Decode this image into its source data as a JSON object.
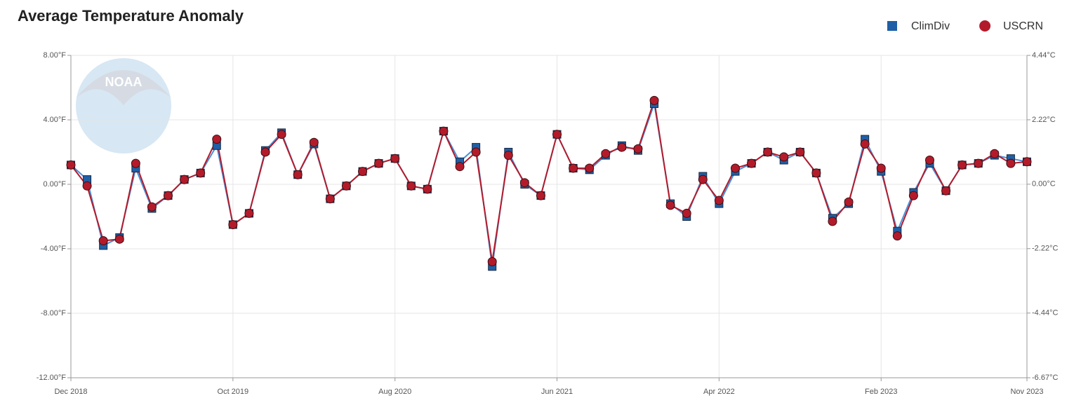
{
  "chart_data": {
    "type": "line",
    "title": "Average Temperature Anomaly",
    "watermark": "NOAA",
    "categories": [
      "Dec 2018",
      null,
      null,
      null,
      null,
      null,
      null,
      null,
      null,
      null,
      "Oct 2019",
      null,
      null,
      null,
      null,
      null,
      null,
      null,
      null,
      null,
      "Aug 2020",
      null,
      null,
      null,
      null,
      null,
      null,
      null,
      null,
      null,
      "Jun 2021",
      null,
      null,
      null,
      null,
      null,
      null,
      null,
      null,
      null,
      "Apr 2022",
      null,
      null,
      null,
      null,
      null,
      null,
      null,
      null,
      null,
      "Feb 2023",
      null,
      null,
      null,
      null,
      null,
      null,
      null,
      null,
      "Nov 2023"
    ],
    "series": [
      {
        "name": "ClimDiv",
        "color": "#1f5fa6",
        "line_color": "#4a90d9",
        "marker": "square",
        "values": [
          1.2,
          0.3,
          -3.8,
          -3.3,
          1.0,
          -1.5,
          -0.7,
          0.3,
          0.7,
          2.4,
          -2.5,
          -1.8,
          2.1,
          3.2,
          0.6,
          2.5,
          -0.9,
          -0.1,
          0.8,
          1.3,
          1.6,
          -0.1,
          -0.3,
          3.3,
          1.4,
          2.3,
          -5.1,
          2.0,
          0.0,
          -0.7,
          3.1,
          1.0,
          0.9,
          1.8,
          2.4,
          2.1,
          5.0,
          -1.2,
          -2.0,
          0.5,
          -1.2,
          0.8,
          1.3,
          2.0,
          1.5,
          2.0,
          0.7,
          -2.1,
          -1.2,
          2.8,
          0.8,
          -2.9,
          -0.5,
          1.3,
          -0.4,
          1.2,
          1.3,
          1.8,
          1.6,
          1.4
        ]
      },
      {
        "name": "USCRN",
        "color": "#b31b2b",
        "line_color": "#b31b2b",
        "marker": "circle",
        "values": [
          1.2,
          -0.1,
          -3.5,
          -3.4,
          1.3,
          -1.4,
          -0.7,
          0.3,
          0.7,
          2.8,
          -2.5,
          -1.8,
          2.0,
          3.1,
          0.6,
          2.6,
          -0.9,
          -0.1,
          0.8,
          1.3,
          1.6,
          -0.1,
          -0.3,
          3.3,
          1.1,
          2.0,
          -4.8,
          1.8,
          0.1,
          -0.7,
          3.1,
          1.0,
          1.0,
          1.9,
          2.3,
          2.2,
          5.2,
          -1.3,
          -1.8,
          0.3,
          -1.0,
          1.0,
          1.3,
          2.0,
          1.7,
          2.0,
          0.7,
          -2.3,
          -1.1,
          2.5,
          1.0,
          -3.2,
          -0.7,
          1.5,
          -0.4,
          1.2,
          1.3,
          1.9,
          1.3,
          1.4
        ]
      }
    ],
    "ylim": [
      -12,
      8
    ],
    "yticks": [
      {
        "value": -12,
        "label": "-12.00°F"
      },
      {
        "value": -8,
        "label": "-8.00°F"
      },
      {
        "value": -4,
        "label": "-4.00°F"
      },
      {
        "value": 0,
        "label": "0.00°F"
      },
      {
        "value": 4,
        "label": "4.00°F"
      },
      {
        "value": 8,
        "label": "8.00°F"
      }
    ],
    "y2lim": [
      -6.67,
      4.44
    ],
    "y2ticks": [
      {
        "value": -6.67,
        "label": "-6.67°C"
      },
      {
        "value": -4.44,
        "label": "-4.44°C"
      },
      {
        "value": -2.22,
        "label": "-2.22°C"
      },
      {
        "value": 0,
        "label": "0.00°C"
      },
      {
        "value": 2.22,
        "label": "2.22°C"
      },
      {
        "value": 4.44,
        "label": "4.44°C"
      }
    ],
    "grid": true,
    "legend": "top-right"
  }
}
